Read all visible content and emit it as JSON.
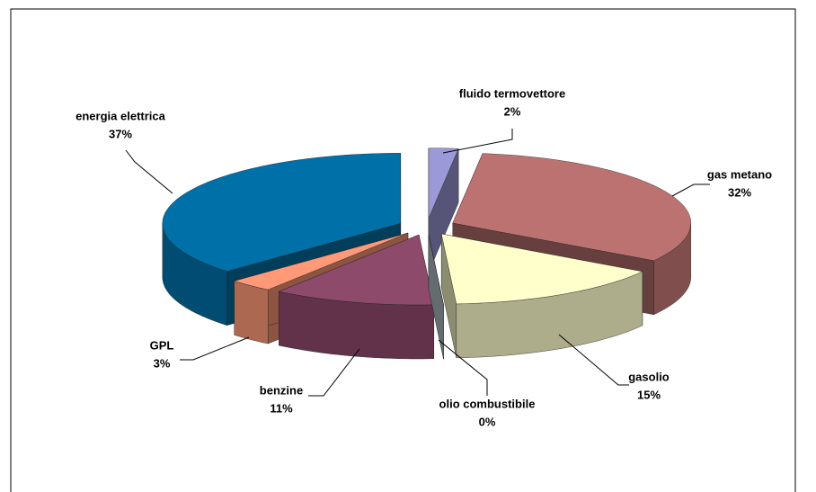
{
  "chart_data": {
    "type": "pie3d",
    "categories": [
      "fluido termovettore",
      "gas metano",
      "gasolio",
      "olio combustibile",
      "benzine",
      "GPL",
      "energia elettrica"
    ],
    "values": [
      2,
      32,
      15,
      0,
      11,
      3,
      37
    ],
    "value_labels": [
      "2%",
      "32%",
      "15%",
      "0%",
      "11%",
      "3%",
      "37%"
    ],
    "colors": [
      "#9c99d8",
      "#bd7272",
      "#ffffcc",
      "#b8c4cc",
      "#8e4a6b",
      "#ff9977",
      "#0070a8"
    ]
  }
}
